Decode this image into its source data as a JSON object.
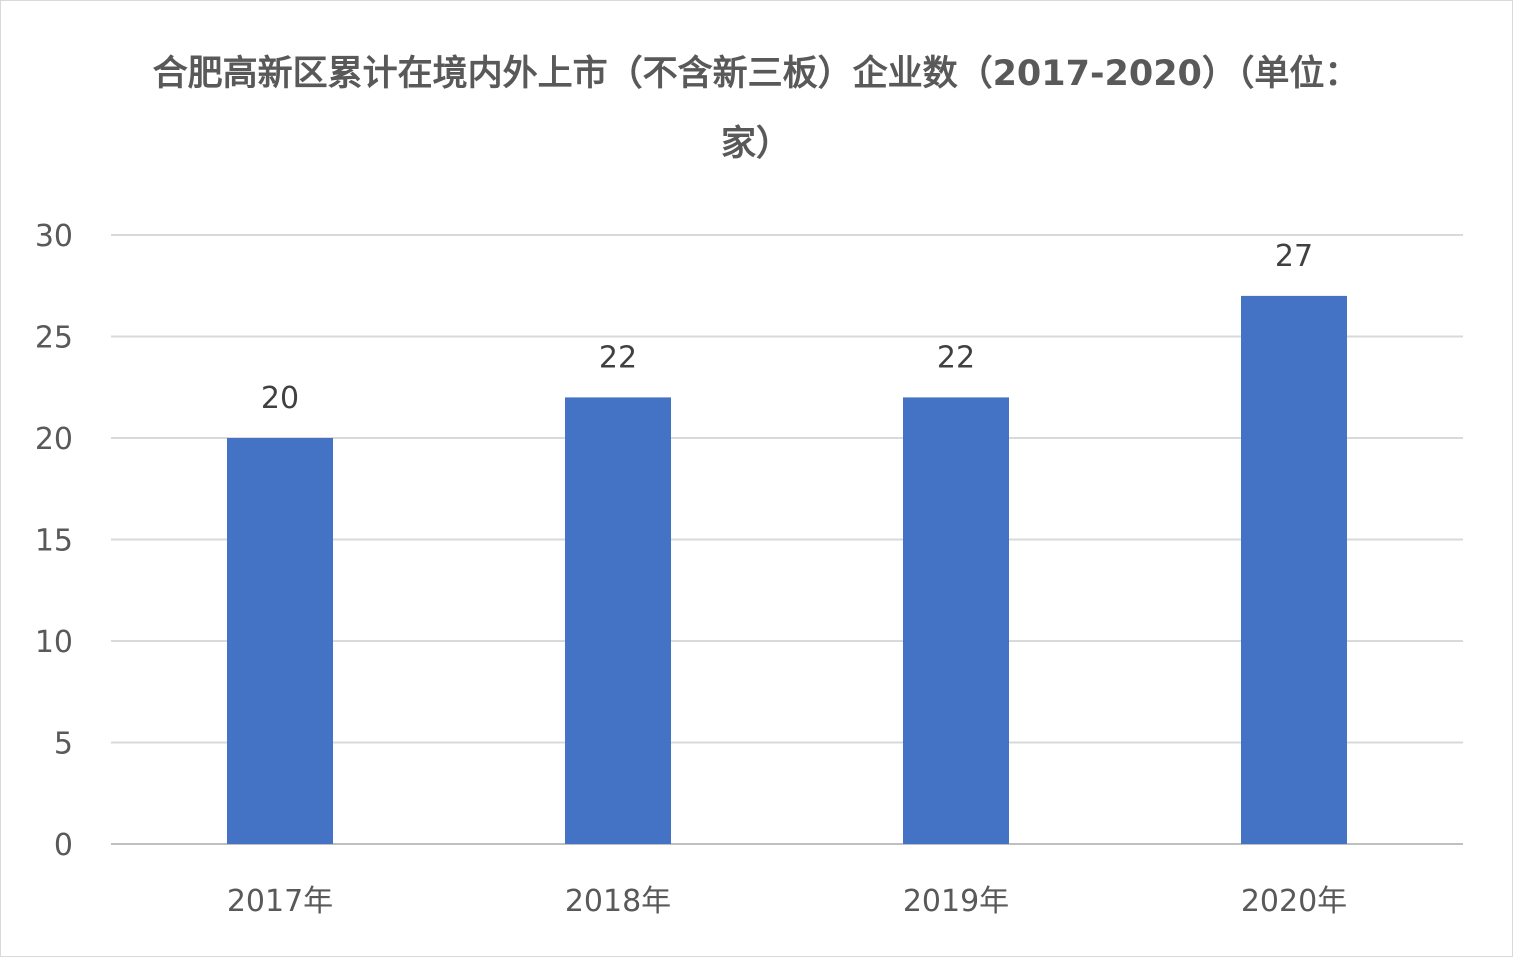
{
  "chart_data": {
    "type": "bar",
    "title": "合肥高新区累计在境内外上市（不含新三板）企业数（2017-2020）（单位：家）",
    "categories": [
      "2017年",
      "2018年",
      "2019年",
      "2020年"
    ],
    "series": [
      {
        "values": [
          20,
          22,
          22,
          27
        ]
      }
    ],
    "ylim": [
      0,
      30
    ],
    "yticks": [
      0,
      5,
      10,
      15,
      20,
      25,
      30
    ],
    "grid": true,
    "legend": "none",
    "bar_color": "#4472c4"
  }
}
